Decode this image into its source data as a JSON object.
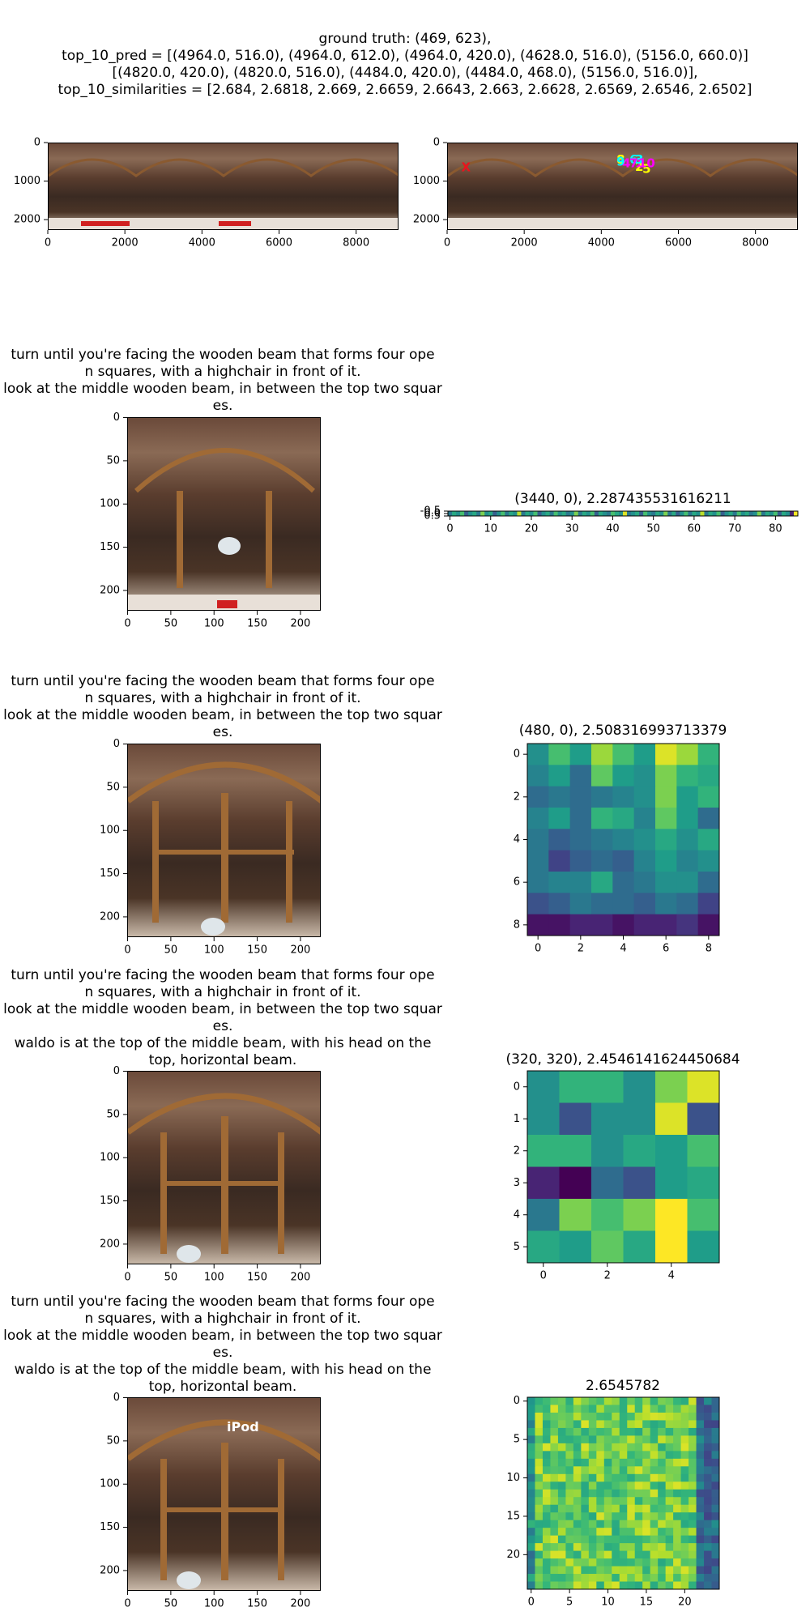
{
  "header": {
    "line1": "ground truth: (469, 623),",
    "line2": "top_10_pred = [(4964.0, 516.0), (4964.0, 612.0), (4964.0, 420.0), (4628.0, 516.0), (5156.0, 660.0)]",
    "line3": "[(4820.0, 420.0), (4820.0, 516.0), (4484.0, 420.0), (4484.0, 468.0), (5156.0, 516.0)],",
    "line4": "top_10_similarities = [2.684, 2.6818, 2.669, 2.6659, 2.6643, 2.663, 2.6628, 2.6569, 2.6546, 2.6502]"
  },
  "panorama": {
    "x_ticks": [
      "0",
      "2000",
      "4000",
      "6000",
      "8000"
    ],
    "y_ticks": [
      "0",
      "1000",
      "2000"
    ],
    "markers": [
      {
        "label": "X",
        "color": "#e8141e"
      },
      {
        "label": "1",
        "color": "#ff00ff"
      },
      {
        "label": "2",
        "color": "#ffff00"
      },
      {
        "label": "3",
        "color": "#00ffff"
      },
      {
        "label": "4",
        "color": "#ff00ff"
      },
      {
        "label": "5",
        "color": "#ffff00"
      },
      {
        "label": "6",
        "color": "#00ffff"
      },
      {
        "label": "7",
        "color": "#ff00ff"
      },
      {
        "label": "8",
        "color": "#ffff00"
      },
      {
        "label": "9",
        "color": "#00ffff"
      },
      {
        "label": "10",
        "color": "#ff00ff"
      }
    ]
  },
  "instructions": {
    "a1": "turn until you're facing the wooden beam that forms four ope",
    "a2": "n squares, with a highchair in front of it.",
    "a3": "look at the middle wooden beam, in between the top two squar",
    "a4": "es.",
    "b1": "waldo is at the top of the middle beam, with his head on the",
    "b2": "top, horizontal beam."
  },
  "crop_axes": {
    "x_ticks": [
      "0",
      "50",
      "100",
      "150",
      "200"
    ],
    "y_ticks": [
      "0",
      "50",
      "100",
      "150",
      "200"
    ]
  },
  "crop_label": "iPod",
  "heatmaps": [
    {
      "title": "(3440, 0), 2.287435531616211",
      "x_ticks": [
        "0",
        "10",
        "20",
        "30",
        "40",
        "50",
        "60",
        "70",
        "80"
      ],
      "y_ticks": [
        "-0.5",
        "0.0",
        "0.5"
      ]
    },
    {
      "title": "(480, 0), 2.508316993713379",
      "x_ticks": [
        "0",
        "2",
        "4",
        "6",
        "8"
      ],
      "y_ticks": [
        "0",
        "2",
        "4",
        "6",
        "8"
      ]
    },
    {
      "title": "(320, 320), 2.4546141624450684",
      "x_ticks": [
        "0",
        "2",
        "4"
      ],
      "y_ticks": [
        "0",
        "1",
        "2",
        "3",
        "4",
        "5"
      ]
    },
    {
      "title": "2.6545782",
      "x_ticks": [
        "0",
        "5",
        "10",
        "15",
        "20"
      ],
      "y_ticks": [
        "0",
        "5",
        "10",
        "15",
        "20"
      ]
    }
  ],
  "chart_data": [
    {
      "type": "heatmap",
      "title": "(3440, 0), 2.287435531616211",
      "rows": 1,
      "cols": 86,
      "values": [
        [
          0.4,
          0.6,
          0.5,
          0.7,
          0.3,
          0.5,
          0.6,
          0.4,
          0.8,
          0.5,
          0.6,
          0.3,
          0.5,
          0.7,
          0.4,
          0.6,
          0.5,
          0.9,
          0.4,
          0.6,
          0.5,
          0.7,
          0.3,
          0.5,
          0.6,
          0.4,
          0.7,
          0.5,
          0.6,
          0.4,
          0.5,
          0.8,
          0.4,
          0.6,
          0.5,
          0.7,
          0.3,
          0.6,
          0.5,
          0.4,
          0.7,
          0.6,
          0.5,
          0.95,
          0.4,
          0.5,
          0.6,
          0.3,
          0.7,
          0.5,
          0.4,
          0.6,
          0.5,
          0.8,
          0.4,
          0.6,
          0.3,
          0.5,
          0.7,
          0.4,
          0.6,
          0.5,
          0.9,
          0.4,
          0.6,
          0.5,
          0.7,
          0.3,
          0.5,
          0.6,
          0.4,
          0.7,
          0.5,
          0.6,
          0.4,
          0.5,
          0.8,
          0.4,
          0.6,
          0.5,
          0.7,
          0.3,
          0.6,
          0.5,
          0.1,
          1.0
        ]
      ]
    },
    {
      "type": "heatmap",
      "title": "(480, 0), 2.508316993713379",
      "rows": 9,
      "cols": 9,
      "values": [
        [
          0.5,
          0.7,
          0.55,
          0.85,
          0.7,
          0.55,
          0.95,
          0.85,
          0.65
        ],
        [
          0.45,
          0.55,
          0.35,
          0.75,
          0.55,
          0.5,
          0.8,
          0.65,
          0.6
        ],
        [
          0.35,
          0.4,
          0.35,
          0.4,
          0.45,
          0.5,
          0.8,
          0.55,
          0.65
        ],
        [
          0.45,
          0.55,
          0.35,
          0.65,
          0.6,
          0.45,
          0.75,
          0.55,
          0.35
        ],
        [
          0.4,
          0.3,
          0.35,
          0.4,
          0.45,
          0.5,
          0.6,
          0.5,
          0.6
        ],
        [
          0.4,
          0.2,
          0.3,
          0.35,
          0.3,
          0.45,
          0.55,
          0.45,
          0.5
        ],
        [
          0.4,
          0.45,
          0.45,
          0.6,
          0.35,
          0.4,
          0.5,
          0.5,
          0.35
        ],
        [
          0.25,
          0.3,
          0.4,
          0.35,
          0.35,
          0.3,
          0.4,
          0.35,
          0.2
        ],
        [
          0.05,
          0.05,
          0.1,
          0.1,
          0.05,
          0.1,
          0.1,
          0.15,
          0.05
        ]
      ]
    },
    {
      "type": "heatmap",
      "title": "(320, 320), 2.4546141624450684",
      "rows": 6,
      "cols": 6,
      "values": [
        [
          0.5,
          0.65,
          0.65,
          0.5,
          0.8,
          0.95
        ],
        [
          0.5,
          0.25,
          0.5,
          0.5,
          0.95,
          0.25
        ],
        [
          0.65,
          0.65,
          0.5,
          0.6,
          0.55,
          0.7
        ],
        [
          0.1,
          0.0,
          0.35,
          0.25,
          0.55,
          0.6
        ],
        [
          0.4,
          0.8,
          0.7,
          0.8,
          1.0,
          0.7
        ],
        [
          0.6,
          0.55,
          0.75,
          0.6,
          1.0,
          0.55
        ]
      ]
    },
    {
      "type": "heatmap",
      "title": "2.6545782",
      "rows": 25,
      "cols": 25,
      "values": "approximately 0.6–0.95 (yellow-green) across most cells, darker (0.2–0.45) in the right-most columns"
    }
  ]
}
